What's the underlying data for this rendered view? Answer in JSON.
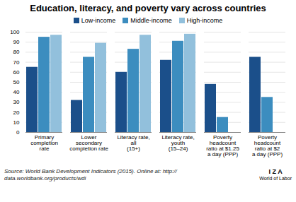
{
  "chart_data": {
    "type": "bar",
    "title": "Education, literacy, and poverty vary across countries",
    "categories": [
      "Primary\ncompletion\nrate",
      "Lower\nsecondary\ncompletion rate",
      "Literacy rate,\nall\n(15+)",
      "Literacy rate,\nyouth\n(15–24)",
      "Poverty\nheadcount\nratio at $1.25\na day (PPP)",
      "Poverty\nheadcount\nratio at $2\na day (PPP)"
    ],
    "series": [
      {
        "name": "Low-income",
        "color": "#1b4f8a",
        "values": [
          65,
          32,
          60,
          72,
          48,
          75
        ]
      },
      {
        "name": "Middle-income",
        "color": "#3c8dbf",
        "values": [
          95,
          75,
          83,
          91,
          15,
          35
        ]
      },
      {
        "name": "High-income",
        "color": "#92c0dc",
        "values": [
          97,
          89,
          97,
          98,
          0,
          0
        ]
      }
    ],
    "ylim": [
      0,
      100
    ],
    "yticks": [
      0,
      10,
      20,
      30,
      40,
      50,
      60,
      70,
      80,
      90,
      100
    ],
    "grid": true,
    "legend": "top",
    "annotations": [
      "Source: World Bank Development Indicators (2015). Online at: http://\ndata.worldbank.org/products/wdi",
      "I Z A",
      "World of Labor"
    ]
  }
}
